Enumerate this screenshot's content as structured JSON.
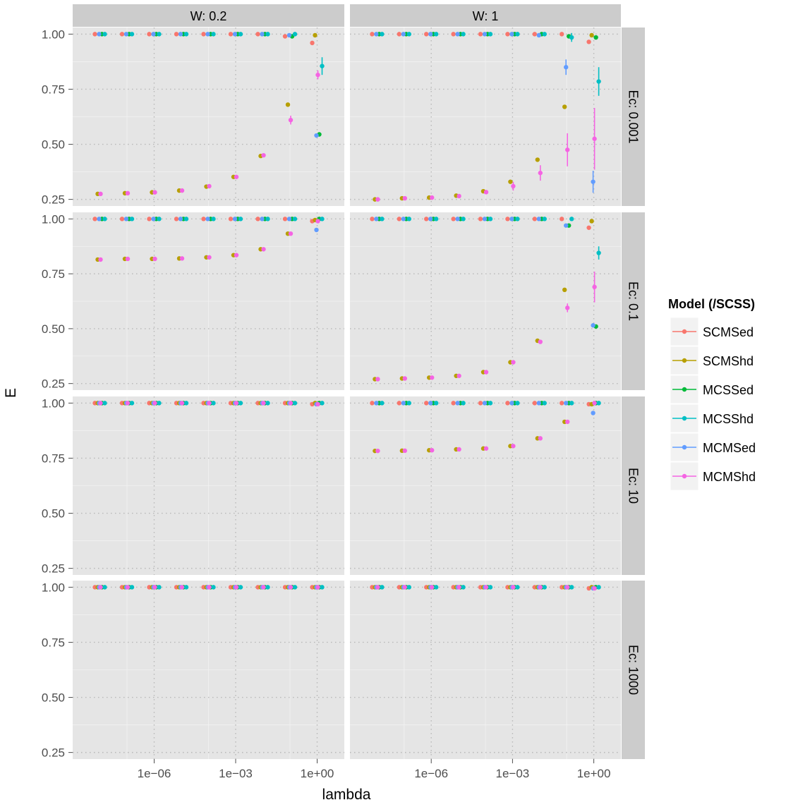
{
  "chart_data": {
    "type": "scatter",
    "xlabel": "lambda",
    "ylabel": "E",
    "x_scale": "log10",
    "xlim": [
      1e-09,
      10
    ],
    "ylim": [
      0.22,
      1.03
    ],
    "x_ticks": [
      1e-06,
      0.001,
      1
    ],
    "x_tick_labels": [
      "1e−06",
      "1e−03",
      "1e+00"
    ],
    "y_ticks": [
      0.25,
      0.5,
      0.75,
      1.0
    ],
    "y_tick_labels": [
      "0.25",
      "0.50",
      "0.75",
      "1.00"
    ],
    "grid": true,
    "legend_position": "right",
    "legend_title": "Model (/SCSS)",
    "lambda_values": [
      1e-08,
      1e-07,
      1e-06,
      1e-05,
      0.0001,
      0.001,
      0.01,
      0.1,
      1
    ],
    "series": [
      {
        "name": "SCMSed",
        "color": "#F8766D"
      },
      {
        "name": "SCMShd",
        "color": "#B79F00"
      },
      {
        "name": "MCSSed",
        "color": "#00BA38"
      },
      {
        "name": "MCSShd",
        "color": "#00BFC4"
      },
      {
        "name": "MCMSed",
        "color": "#619CFF"
      },
      {
        "name": "MCMShd",
        "color": "#F564E3"
      }
    ],
    "col_facets": [
      "W: 0.2",
      "W: 1"
    ],
    "row_facets": [
      "Ec: 0.001",
      "Ec: 0.1",
      "Ec: 10",
      "Ec: 1000"
    ],
    "panels": [
      {
        "row": 0,
        "col": 0,
        "values": {
          "SCMSed": [
            1,
            1,
            1,
            1,
            1,
            1,
            1,
            0.99,
            0.96
          ],
          "SCMShd": [
            0.275,
            0.278,
            0.282,
            0.29,
            0.308,
            0.352,
            0.447,
            0.68,
            0.995
          ],
          "MCSSed": [
            1,
            1,
            1,
            1,
            1,
            1,
            1,
            0.99,
            0.545
          ],
          "MCSShd": [
            1,
            1,
            1,
            1,
            1,
            1,
            1,
            1,
            0.855
          ],
          "MCMSed": [
            1,
            1,
            1,
            1,
            1,
            1,
            1,
            0.995,
            0.54
          ],
          "MCMShd": [
            0.275,
            0.278,
            0.282,
            0.29,
            0.31,
            0.352,
            0.45,
            0.61,
            0.815
          ]
        },
        "errors": {
          "MCSShd": [
            0,
            0,
            0,
            0,
            0,
            0,
            0,
            0,
            0.04
          ],
          "MCMShd": [
            0,
            0,
            0,
            0,
            0,
            0,
            0,
            0.02,
            0.02
          ]
        }
      },
      {
        "row": 0,
        "col": 1,
        "values": {
          "SCMSed": [
            1,
            1,
            1,
            1,
            1,
            1,
            1,
            1,
            0.965
          ],
          "SCMShd": [
            0.25,
            0.255,
            0.258,
            0.267,
            0.287,
            0.33,
            0.43,
            0.67,
            0.995
          ],
          "MCSSed": [
            1,
            1,
            1,
            1,
            1,
            1,
            1,
            0.99,
            0.985
          ],
          "MCSShd": [
            1,
            1,
            1,
            1,
            1,
            1,
            1,
            0.985,
            0.785
          ],
          "MCMSed": [
            1,
            1,
            1,
            1,
            1,
            1,
            0.995,
            0.85,
            0.33
          ],
          "MCMShd": [
            0.25,
            0.255,
            0.258,
            0.265,
            0.283,
            0.31,
            0.37,
            0.475,
            0.525
          ]
        },
        "errors": {
          "MCSShd": [
            0,
            0,
            0,
            0,
            0,
            0,
            0,
            0.02,
            0.065
          ],
          "MCMSed": [
            0,
            0,
            0,
            0,
            0,
            0,
            0,
            0.035,
            0.05
          ],
          "MCMShd": [
            0,
            0,
            0,
            0,
            0,
            0.02,
            0.035,
            0.075,
            0.14
          ]
        }
      },
      {
        "row": 1,
        "col": 0,
        "values": {
          "SCMSed": [
            1,
            1,
            1,
            1,
            1,
            1,
            1,
            1,
            0.99
          ],
          "SCMShd": [
            0.815,
            0.818,
            0.818,
            0.82,
            0.825,
            0.835,
            0.862,
            0.933,
            0.995
          ],
          "MCSSed": [
            1,
            1,
            1,
            1,
            1,
            1,
            1,
            1,
            1
          ],
          "MCSShd": [
            1,
            1,
            1,
            1,
            1,
            1,
            1,
            1,
            1
          ],
          "MCMSed": [
            1,
            1,
            1,
            1,
            1,
            1,
            1,
            1,
            0.95
          ],
          "MCMShd": [
            0.815,
            0.818,
            0.818,
            0.82,
            0.825,
            0.835,
            0.862,
            0.933,
            0.99
          ]
        },
        "errors": {}
      },
      {
        "row": 1,
        "col": 1,
        "values": {
          "SCMSed": [
            1,
            1,
            1,
            1,
            1,
            1,
            1,
            1,
            0.96
          ],
          "SCMShd": [
            0.27,
            0.273,
            0.277,
            0.285,
            0.302,
            0.347,
            0.445,
            0.677,
            0.99
          ],
          "MCSSed": [
            1,
            1,
            1,
            1,
            1,
            1,
            1,
            0.97,
            0.51
          ],
          "MCSShd": [
            1,
            1,
            1,
            1,
            1,
            1,
            1,
            1,
            0.845
          ],
          "MCMSed": [
            1,
            1,
            1,
            1,
            1,
            1,
            1,
            0.97,
            0.515
          ],
          "MCMShd": [
            0.27,
            0.273,
            0.277,
            0.285,
            0.302,
            0.347,
            0.44,
            0.595,
            0.69
          ]
        },
        "errors": {
          "MCSShd": [
            0,
            0,
            0,
            0,
            0,
            0,
            0,
            0,
            0.03
          ],
          "MCMShd": [
            0,
            0,
            0,
            0,
            0,
            0,
            0,
            0.02,
            0.07
          ]
        }
      },
      {
        "row": 2,
        "col": 0,
        "values": {
          "SCMSed": [
            1,
            1,
            1,
            1,
            1,
            1,
            1,
            1,
            0.995
          ],
          "SCMShd": [
            1,
            1,
            1,
            1,
            1,
            1,
            1,
            1,
            1
          ],
          "MCSSed": [
            1,
            1,
            1,
            1,
            1,
            1,
            1,
            1,
            1
          ],
          "MCSShd": [
            1,
            1,
            1,
            1,
            1,
            1,
            1,
            1,
            1
          ],
          "MCMSed": [
            1,
            1,
            1,
            1,
            1,
            1,
            1,
            1,
            0.995
          ],
          "MCMShd": [
            1,
            1,
            1,
            1,
            1,
            1,
            1,
            1,
            0.995
          ]
        },
        "errors": {}
      },
      {
        "row": 2,
        "col": 1,
        "values": {
          "SCMSed": [
            1,
            1,
            1,
            1,
            1,
            1,
            1,
            1,
            0.995
          ],
          "SCMShd": [
            0.783,
            0.784,
            0.786,
            0.79,
            0.794,
            0.805,
            0.84,
            0.915,
            0.995
          ],
          "MCSSed": [
            1,
            1,
            1,
            1,
            1,
            1,
            1,
            1,
            1
          ],
          "MCSShd": [
            1,
            1,
            1,
            1,
            1,
            1,
            1,
            1,
            1
          ],
          "MCMSed": [
            1,
            1,
            1,
            1,
            1,
            1,
            1,
            1,
            0.955
          ],
          "MCMShd": [
            0.783,
            0.784,
            0.786,
            0.79,
            0.794,
            0.805,
            0.84,
            0.915,
            1
          ]
        },
        "errors": {}
      },
      {
        "row": 3,
        "col": 0,
        "values": {
          "SCMSed": [
            1,
            1,
            1,
            1,
            1,
            1,
            1,
            1,
            1
          ],
          "SCMShd": [
            1,
            1,
            1,
            1,
            1,
            1,
            1,
            1,
            1
          ],
          "MCSSed": [
            1,
            1,
            1,
            1,
            1,
            1,
            1,
            1,
            1
          ],
          "MCSShd": [
            1,
            1,
            1,
            1,
            1,
            1,
            1,
            1,
            1
          ],
          "MCMSed": [
            1,
            1,
            1,
            1,
            1,
            1,
            1,
            1,
            1
          ],
          "MCMShd": [
            1,
            1,
            1,
            1,
            1,
            1,
            1,
            1,
            1
          ]
        },
        "errors": {}
      },
      {
        "row": 3,
        "col": 1,
        "values": {
          "SCMSed": [
            1,
            1,
            1,
            1,
            1,
            1,
            1,
            1,
            0.995
          ],
          "SCMShd": [
            1,
            1,
            1,
            1,
            1,
            1,
            1,
            1,
            1
          ],
          "MCSSed": [
            1,
            1,
            1,
            1,
            1,
            1,
            1,
            1,
            1
          ],
          "MCSShd": [
            1,
            1,
            1,
            1,
            1,
            1,
            1,
            1,
            1
          ],
          "MCMSed": [
            1,
            1,
            1,
            1,
            1,
            1,
            1,
            1,
            0.995
          ],
          "MCMShd": [
            1,
            1,
            1,
            1,
            1,
            1,
            1,
            1,
            0.995
          ]
        },
        "errors": {}
      }
    ]
  }
}
